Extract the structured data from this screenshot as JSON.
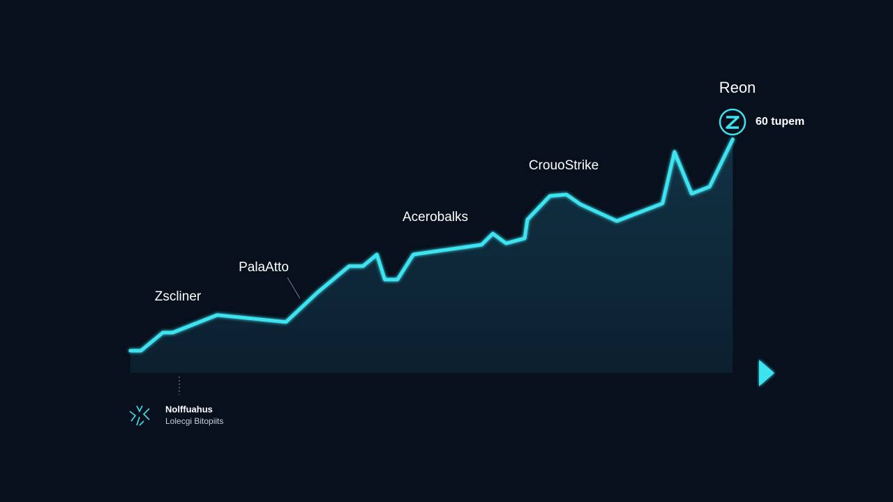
{
  "chart_data": {
    "type": "area-line",
    "color": "#3ee3f0",
    "x": [
      4.4,
      6.0,
      9.3,
      10.8,
      17.5,
      27.9,
      32.6,
      37.4,
      39.5,
      41.6,
      42.8,
      44.7,
      47.1,
      57.4,
      59.1,
      61.1,
      63.9,
      64.3,
      67.7,
      70.2,
      72.3,
      77.8,
      84.7,
      86.5,
      89.1,
      91.8,
      95.3
    ],
    "values": [
      8,
      8,
      14.5,
      14.5,
      20.8,
      18.3,
      28.8,
      38.3,
      38.3,
      42.5,
      33.5,
      33.5,
      42.5,
      46,
      50,
      46.5,
      48.3,
      55,
      63.5,
      64,
      60.5,
      54.5,
      60.8,
      79.3,
      64.3,
      66.8,
      83.8
    ],
    "xlim": [
      0,
      100
    ],
    "ylim": [
      0,
      100
    ],
    "annotations": [
      "Zscliner",
      "PalaAtto",
      "Acerobalks",
      "CrouoStrike",
      "Reon",
      "60 tupem"
    ],
    "footer": {
      "title": "Nolffuahus",
      "subtitle": "Lolecgi Bitopiits"
    }
  }
}
